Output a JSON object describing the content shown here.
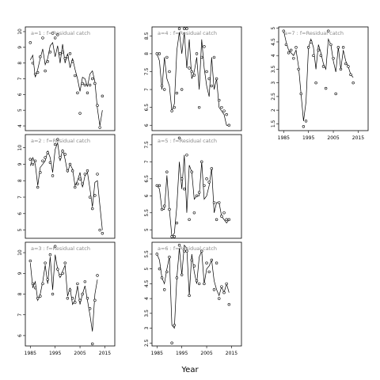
{
  "chart_data": {
    "type": "line",
    "xlabel": "Year",
    "x_ticks": [
      1985,
      1995,
      2005,
      2015
    ],
    "xlim": [
      1983,
      2019
    ],
    "panels": [
      {
        "label": "a=1 : f=Residual catch",
        "ylim": [
          3.7,
          10.3
        ],
        "yticks": [
          4,
          5,
          6,
          7,
          8,
          9,
          10
        ],
        "obs": [
          9.3,
          8.0,
          7.3,
          7.4,
          8.4,
          9.6,
          7.5,
          8.1,
          8.7,
          9.9,
          9.6,
          9.8,
          8.6,
          8.7,
          8.3,
          8.4,
          8.6,
          8.1,
          7.2,
          6.1,
          4.8,
          6.7,
          6.6,
          6.1,
          6.6,
          7.0,
          6.7,
          5.3,
          3.9,
          5.9
        ],
        "fit": [
          8.2,
          8.5,
          7.1,
          7.6,
          8.3,
          8.9,
          7.9,
          8.3,
          9.1,
          9.3,
          8.4,
          9.1,
          8.0,
          9.2,
          8.0,
          8.6,
          7.7,
          8.3,
          7.6,
          7.0,
          6.2,
          7.1,
          7.0,
          6.5,
          7.3,
          7.5,
          6.8,
          5.1,
          4.0,
          5.0
        ]
      },
      {
        "label": "a=2 : f=Residual catch",
        "ylim": [
          4.5,
          10.8
        ],
        "yticks": [
          5,
          6,
          7,
          8,
          9,
          10
        ],
        "obs": [
          9.3,
          9.0,
          9.2,
          7.6,
          8.5,
          9.2,
          9.4,
          9.7,
          9.1,
          8.3,
          10.2,
          10.5,
          9.4,
          9.8,
          9.6,
          8.6,
          9.0,
          8.6,
          7.6,
          7.8,
          8.1,
          7.8,
          8.4,
          8.6,
          7.0,
          6.3,
          7.1,
          8.4,
          5.0,
          4.8
        ],
        "fit": [
          8.9,
          9.4,
          9.0,
          7.7,
          8.8,
          9.0,
          9.2,
          9.8,
          9.4,
          8.5,
          9.9,
          10.3,
          9.2,
          9.9,
          9.3,
          8.5,
          9.0,
          8.7,
          7.7,
          8.0,
          8.5,
          7.6,
          8.3,
          8.5,
          7.5,
          6.4,
          7.9,
          8.0,
          6.5,
          5.0
        ]
      },
      {
        "label": "a=3 : f=Residual catch",
        "ylim": [
          5.5,
          10.5
        ],
        "yticks": [
          6,
          7,
          8,
          9,
          10
        ],
        "obs": [
          9.6,
          8.5,
          8.3,
          7.8,
          7.9,
          8.5,
          9.5,
          8.7,
          9.9,
          8.0,
          10.3,
          9.2,
          8.9,
          9.0,
          9.5,
          7.8,
          8.2,
          7.8,
          7.6,
          8.5,
          7.7,
          8.0,
          8.6,
          7.8,
          7.3,
          5.6,
          7.7,
          8.9
        ],
        "fit": [
          9.5,
          8.3,
          8.6,
          7.7,
          8.0,
          8.6,
          9.4,
          8.5,
          9.8,
          8.2,
          9.9,
          9.2,
          8.8,
          9.1,
          9.4,
          7.9,
          8.3,
          7.5,
          7.7,
          8.4,
          7.5,
          8.0,
          8.4,
          7.7,
          7.0,
          6.2,
          8.0,
          8.7
        ]
      },
      {
        "label": "a=4 : f=Residual catch",
        "ylim": [
          5.85,
          8.75
        ],
        "yticks": [
          6.0,
          6.5,
          7.0,
          7.5,
          8.0,
          8.5
        ],
        "obs": [
          8.0,
          8.0,
          7.1,
          7.0,
          7.9,
          7.5,
          6.4,
          6.5,
          6.9,
          8.7,
          7.0,
          8.7,
          8.7,
          7.6,
          7.5,
          7.4,
          8.0,
          6.5,
          7.9,
          8.2,
          7.5,
          7.3,
          7.1,
          7.9,
          7.3,
          6.7,
          6.5,
          6.4,
          6.3,
          6.0
        ],
        "fit": [
          8.0,
          7.8,
          7.0,
          7.9,
          7.3,
          7.1,
          6.4,
          6.6,
          8.1,
          8.6,
          8.0,
          8.6,
          7.6,
          8.4,
          7.3,
          7.5,
          7.9,
          7.0,
          8.4,
          7.6,
          7.1,
          6.8,
          7.9,
          7.0,
          7.3,
          6.5,
          6.4,
          6.3,
          6.0,
          6.0
        ]
      },
      {
        "label": "a=5 : f=Residual catch",
        "ylim": [
          4.75,
          7.8
        ],
        "yticks": [
          5.0,
          5.5,
          6.0,
          6.5,
          7.0,
          7.5
        ],
        "obs": [
          6.3,
          6.3,
          5.6,
          5.7,
          6.7,
          5.6,
          4.8,
          4.8,
          5.2,
          7.7,
          6.5,
          6.2,
          7.2,
          5.3,
          6.7,
          5.5,
          6.0,
          6.1,
          7.0,
          6.3,
          6.5,
          6.4,
          6.8,
          5.8,
          5.3,
          5.8,
          5.4,
          5.5,
          5.3,
          5.3
        ],
        "fit": [
          6.3,
          6.2,
          5.6,
          5.6,
          6.6,
          5.6,
          4.8,
          4.9,
          5.7,
          7.0,
          6.2,
          7.2,
          5.5,
          6.9,
          6.7,
          5.9,
          6.0,
          6.0,
          7.0,
          5.9,
          6.0,
          6.3,
          6.8,
          5.5,
          5.8,
          5.8,
          5.4,
          5.3,
          5.2,
          5.3
        ]
      },
      {
        "label": "a=6 : f=Residual catch",
        "ylim": [
          2.4,
          5.9
        ],
        "yticks": [
          2.5,
          3.0,
          3.5,
          4.0,
          4.5,
          5.0,
          5.5
        ],
        "obs": [
          5.5,
          5.0,
          4.7,
          4.3,
          4.9,
          5.4,
          2.5,
          3.1,
          4.7,
          5.8,
          4.8,
          5.6,
          5.6,
          4.1,
          5.3,
          5.1,
          4.6,
          4.5,
          5.6,
          4.5,
          5.2,
          4.9,
          5.3,
          4.3,
          5.2,
          4.0,
          4.4,
          4.2,
          4.5,
          3.8
        ],
        "fit": [
          5.5,
          5.3,
          4.7,
          4.5,
          5.0,
          5.4,
          3.1,
          3.0,
          4.7,
          5.7,
          4.8,
          5.8,
          5.7,
          4.1,
          5.5,
          4.9,
          4.5,
          5.4,
          5.6,
          4.5,
          5.0,
          5.1,
          5.3,
          4.6,
          4.3,
          4.1,
          4.4,
          4.2,
          4.5,
          4.2
        ]
      },
      {
        "label": "a=7 : f=Residual catch",
        "ylim": [
          1.25,
          5.05
        ],
        "yticks": [
          1.5,
          2.0,
          2.5,
          3.0,
          3.5,
          4.0,
          4.5,
          5.0
        ],
        "obs": [
          4.9,
          4.4,
          4.1,
          4.2,
          3.9,
          4.3,
          3.5,
          2.6,
          1.4,
          1.6,
          4.3,
          4.5,
          4.0,
          3.0,
          4.2,
          4.0,
          3.6,
          2.8,
          4.9,
          4.4,
          3.9,
          2.6,
          4.3,
          3.5,
          4.3,
          3.7,
          3.6,
          3.3,
          3.0
        ],
        "fit": [
          4.9,
          4.5,
          4.2,
          4.1,
          4.0,
          4.2,
          3.6,
          2.6,
          1.6,
          2.3,
          4.3,
          4.6,
          4.3,
          3.5,
          4.4,
          4.1,
          3.7,
          3.5,
          4.6,
          4.4,
          3.8,
          3.4,
          4.3,
          3.5,
          4.2,
          3.8,
          3.6,
          3.3,
          3.2
        ]
      }
    ]
  }
}
